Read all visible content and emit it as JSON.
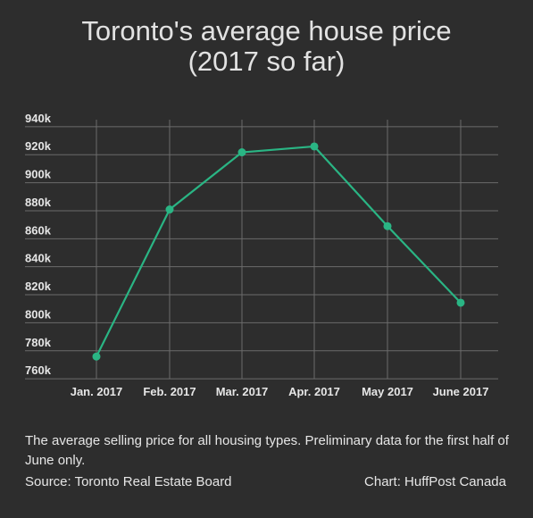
{
  "chart_data": {
    "type": "line",
    "title_line1": "Toronto's average house price",
    "title_line2": "(2017 so far)",
    "categories": [
      "Jan. 2017",
      "Feb. 2017",
      "Mar. 2017",
      "Apr. 2017",
      "May 2017",
      "June 2017"
    ],
    "series": [
      {
        "values": [
          770800,
          875800,
          916600,
          920800,
          863900,
          809200
        ],
        "color": "#2ab584"
      }
    ],
    "y_ticks": [
      "940k",
      "920k",
      "900k",
      "880k",
      "860k",
      "840k",
      "820k",
      "800k",
      "780k",
      "760k"
    ],
    "ylim": [
      755000,
      945000
    ],
    "grid": true,
    "xlabel": "",
    "ylabel": ""
  },
  "footer": {
    "note": "The average selling price for all housing types. Preliminary data for the first half of June only.",
    "source": "Source: Toronto Real Estate Board",
    "credit": "Chart: HuffPost Canada"
  },
  "colors": {
    "background": "#2d2d2d",
    "grid": "#6b6b6b",
    "line": "#2ab584",
    "text": "#e6e6e6"
  }
}
